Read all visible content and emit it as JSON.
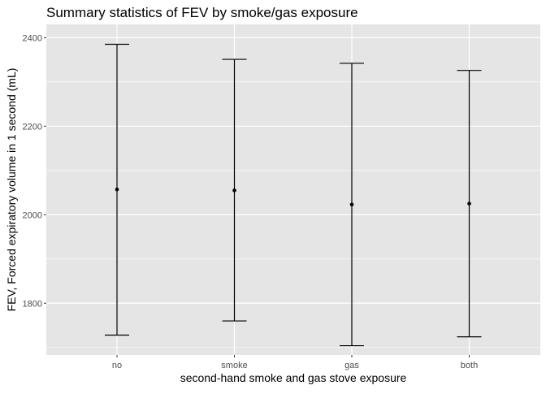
{
  "chart_data": {
    "type": "errorbar",
    "title": "Summary statistics of FEV by smoke/gas exposure",
    "xlabel": "second-hand smoke and gas stove exposure",
    "ylabel": "FEV, Forced expiratory volume in 1 second (mL)",
    "categories": [
      "no",
      "smoke",
      "gas",
      "both"
    ],
    "mean": [
      2057,
      2055,
      2023,
      2025
    ],
    "lower": [
      1728,
      1760,
      1704,
      1724
    ],
    "upper": [
      2385,
      2351,
      2342,
      2326
    ],
    "ylim": [
      1683,
      2430
    ],
    "yticks": [
      1800,
      2000,
      2200,
      2400
    ],
    "ytick_labels": [
      "1800",
      "2000",
      "2200",
      "2400"
    ],
    "grid": true,
    "colors": {
      "panel": "#e5e5e5",
      "grid": "#ffffff",
      "mark": "#000000",
      "text": "#000000",
      "tick_text": "#4d4d4d"
    }
  }
}
